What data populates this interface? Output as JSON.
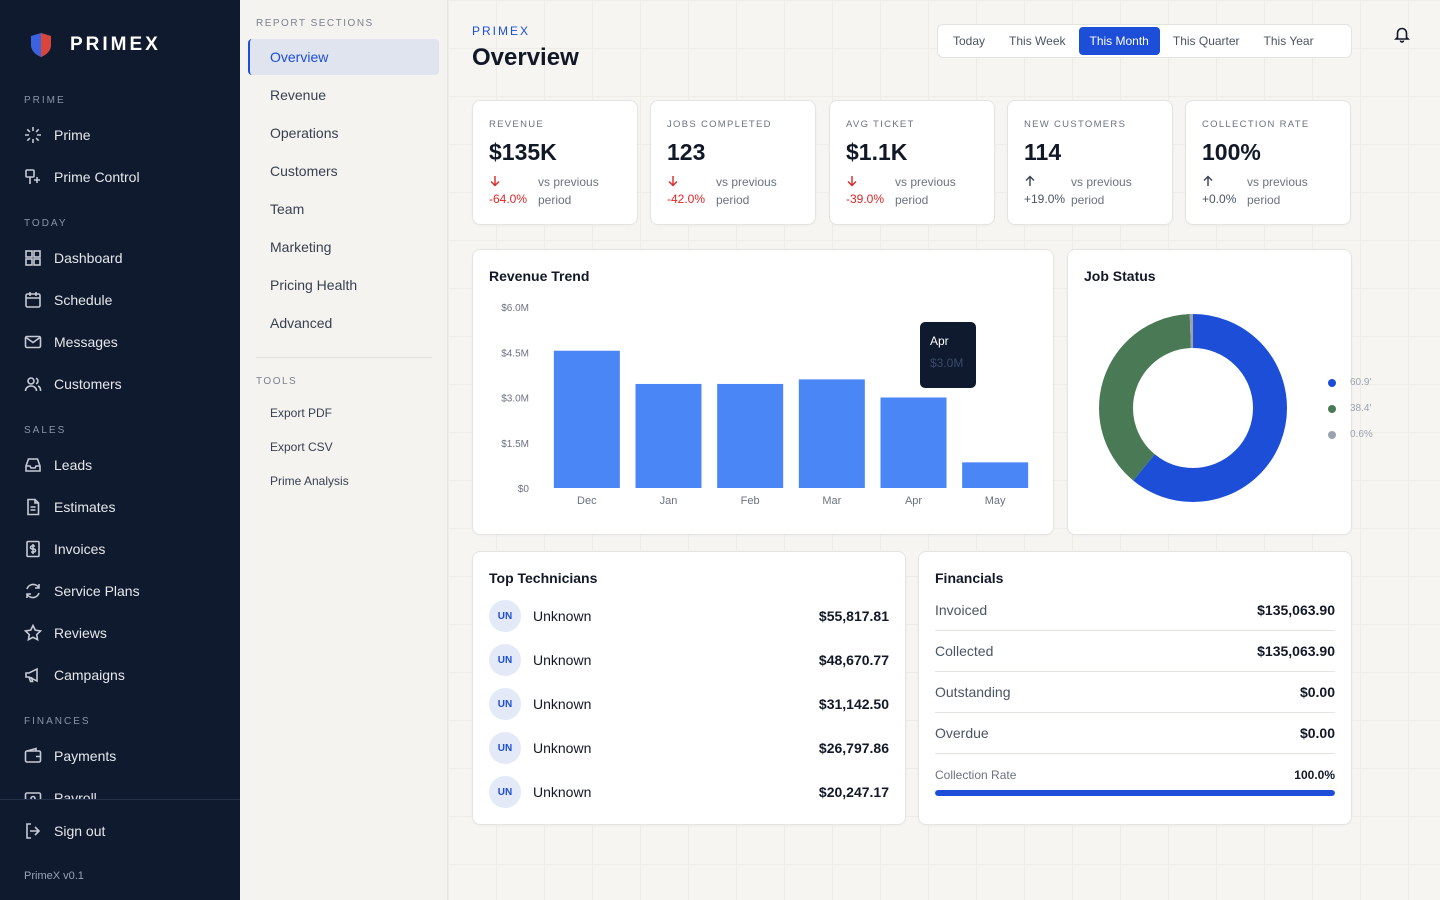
{
  "brand": {
    "name": "PRIMEX",
    "version": "PrimeX v0.1"
  },
  "sidebar": {
    "sections": [
      {
        "label": "PRIME",
        "items": [
          {
            "label": "Prime",
            "icon": "sparkle-icon"
          },
          {
            "label": "Prime Control",
            "icon": "control-icon"
          }
        ]
      },
      {
        "label": "TODAY",
        "items": [
          {
            "label": "Dashboard",
            "icon": "dashboard-icon"
          },
          {
            "label": "Schedule",
            "icon": "calendar-icon"
          },
          {
            "label": "Messages",
            "icon": "mail-icon"
          },
          {
            "label": "Customers",
            "icon": "users-icon"
          }
        ]
      },
      {
        "label": "SALES",
        "items": [
          {
            "label": "Leads",
            "icon": "inbox-icon"
          },
          {
            "label": "Estimates",
            "icon": "document-icon"
          },
          {
            "label": "Invoices",
            "icon": "invoice-icon"
          },
          {
            "label": "Service Plans",
            "icon": "refresh-icon"
          },
          {
            "label": "Reviews",
            "icon": "star-icon"
          },
          {
            "label": "Campaigns",
            "icon": "megaphone-icon"
          }
        ]
      },
      {
        "label": "FINANCES",
        "items": [
          {
            "label": "Payments",
            "icon": "wallet-icon"
          },
          {
            "label": "Payroll",
            "icon": "payroll-icon"
          }
        ]
      }
    ],
    "signout": "Sign out"
  },
  "subnav": {
    "title": "REPORT SECTIONS",
    "items": [
      "Overview",
      "Revenue",
      "Operations",
      "Customers",
      "Team",
      "Marketing",
      "Pricing Health",
      "Advanced"
    ],
    "active": "Overview",
    "tools_title": "TOOLS",
    "tools": [
      "Export PDF",
      "Export CSV",
      "Prime Analysis"
    ]
  },
  "header": {
    "eyebrow": "PRIMEX",
    "title": "Overview",
    "ranges": [
      "Today",
      "This Week",
      "This Month",
      "This Quarter",
      "This Year"
    ],
    "active_range": "This Month"
  },
  "kpis": [
    {
      "label": "REVENUE",
      "value": "$135K",
      "delta": "-64.0%",
      "direction": "down",
      "vs": "vs previous period"
    },
    {
      "label": "JOBS COMPLETED",
      "value": "123",
      "delta": "-42.0%",
      "direction": "down",
      "vs": "vs previous period"
    },
    {
      "label": "AVG TICKET",
      "value": "$1.1K",
      "delta": "-39.0%",
      "direction": "down",
      "vs": "vs previous period"
    },
    {
      "label": "NEW CUSTOMERS",
      "value": "114",
      "delta": "+19.0%",
      "direction": "up",
      "vs": "vs previous period"
    },
    {
      "label": "COLLECTION RATE",
      "value": "100%",
      "delta": "+0.0%",
      "direction": "up",
      "vs": "vs previous period"
    }
  ],
  "revenue_trend": {
    "title": "Revenue Trend",
    "tooltip": {
      "month": "Apr",
      "value": "$3.0M"
    }
  },
  "job_status": {
    "title": "Job Status",
    "legend": [
      "60.9'",
      "38.4'",
      "0.6%"
    ]
  },
  "chart_data": [
    {
      "type": "bar",
      "title": "Revenue Trend",
      "categories": [
        "Dec",
        "Jan",
        "Feb",
        "Mar",
        "Apr",
        "May"
      ],
      "values": [
        4.55,
        3.45,
        3.45,
        3.6,
        3.0,
        0.85
      ],
      "unit": "$M",
      "ylim": [
        0,
        6.0
      ],
      "yticks": [
        "$0",
        "$1.5M",
        "$3.0M",
        "$4.5M",
        "$6.0M"
      ],
      "color": "#4b86f6",
      "grid": false
    },
    {
      "type": "pie",
      "title": "Job Status",
      "values": [
        60.9,
        38.4,
        0.6
      ],
      "colors": [
        "#1d4ed8",
        "#4a7a55",
        "#9ca3af"
      ],
      "donut": true
    }
  ],
  "technicians": {
    "title": "Top Technicians",
    "rows": [
      {
        "initials": "UN",
        "name": "Unknown",
        "amount": "$55,817.81"
      },
      {
        "initials": "UN",
        "name": "Unknown",
        "amount": "$48,670.77"
      },
      {
        "initials": "UN",
        "name": "Unknown",
        "amount": "$31,142.50"
      },
      {
        "initials": "UN",
        "name": "Unknown",
        "amount": "$26,797.86"
      },
      {
        "initials": "UN",
        "name": "Unknown",
        "amount": "$20,247.17"
      }
    ]
  },
  "financials": {
    "title": "Financials",
    "rows": [
      {
        "label": "Invoiced",
        "value": "$135,063.90"
      },
      {
        "label": "Collected",
        "value": "$135,063.90"
      },
      {
        "label": "Outstanding",
        "value": "$0.00"
      },
      {
        "label": "Overdue",
        "value": "$0.00"
      }
    ],
    "rate_label": "Collection Rate",
    "rate_value": "100.0%",
    "rate_fraction": 1.0
  },
  "colors": {
    "accent": "#1d4ed8",
    "sidebar": "#0f1a2e",
    "negative": "#dc2626",
    "bar": "#4b86f6"
  }
}
